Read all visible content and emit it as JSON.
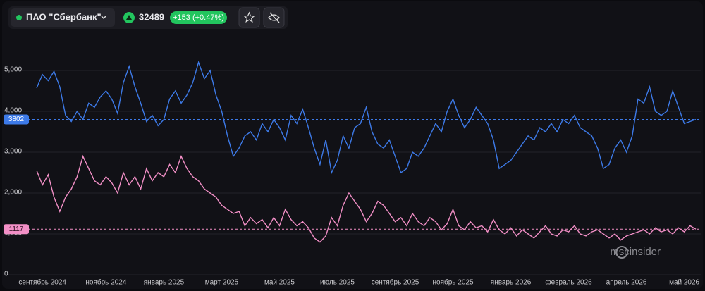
{
  "header": {
    "name": "ПАО \"Сбербанк\"",
    "price": 32489,
    "change": "+153 (+0.47%)"
  },
  "watermark": "mscinsider",
  "chart_data": {
    "type": "line",
    "categories": [
      null,
      "сентябрь 2024",
      null,
      null,
      null,
      null,
      null,
      null,
      null,
      null,
      null,
      null,
      "ноябрь 2024",
      null,
      null,
      null,
      null,
      null,
      null,
      null,
      null,
      null,
      "январь 2025",
      null,
      null,
      null,
      null,
      null,
      null,
      null,
      null,
      null,
      "март 2025",
      null,
      null,
      null,
      null,
      null,
      null,
      null,
      null,
      null,
      "май 2025",
      null,
      null,
      null,
      null,
      null,
      null,
      null,
      null,
      null,
      "июль 2025",
      null,
      null,
      null,
      null,
      null,
      null,
      null,
      null,
      null,
      "сентябрь 2025",
      null,
      null,
      null,
      null,
      null,
      null,
      null,
      null,
      null,
      "ноябрь 2025",
      null,
      null,
      null,
      null,
      null,
      null,
      null,
      null,
      null,
      "январь 2026",
      null,
      null,
      null,
      null,
      null,
      null,
      null,
      null,
      null,
      "февраль 2026",
      null,
      null,
      null,
      null,
      null,
      null,
      null,
      null,
      null,
      "апрель 2026",
      null,
      null,
      null,
      null,
      null,
      null,
      null,
      null,
      null,
      "май 2026",
      null,
      null
    ],
    "series": [
      {
        "color": "#3d7ae8",
        "values": [
          4570,
          4900,
          4750,
          4980,
          4600,
          3900,
          3750,
          4000,
          3800,
          4200,
          4100,
          4350,
          4500,
          4300,
          3950,
          4700,
          5100,
          4600,
          4200,
          3750,
          3900,
          3650,
          3800,
          4300,
          4500,
          4200,
          4400,
          4700,
          5200,
          4800,
          5000,
          4400,
          4000,
          3400,
          2900,
          3100,
          3400,
          3500,
          3300,
          3700,
          3500,
          3800,
          3600,
          3300,
          3900,
          3700,
          4050,
          3600,
          3100,
          2700,
          3300,
          2500,
          2800,
          3400,
          3100,
          3600,
          3700,
          4100,
          3500,
          3200,
          3100,
          3300,
          2900,
          2500,
          2600,
          3000,
          2900,
          3100,
          3400,
          3700,
          3500,
          4000,
          4300,
          3900,
          3600,
          3800,
          4100,
          3900,
          3700,
          3300,
          2600,
          2700,
          2800,
          3000,
          3200,
          3400,
          3300,
          3600,
          3500,
          3700,
          3500,
          3800,
          3700,
          3900,
          3600,
          3500,
          3400,
          3100,
          2600,
          2700,
          3100,
          3300,
          3000,
          3400,
          4300,
          4200,
          4600,
          4000,
          3900,
          4000,
          4500,
          4100,
          3700,
          3750,
          3802
        ]
      },
      {
        "color": "#f28fc6",
        "values": [
          2550,
          2200,
          2450,
          1900,
          1550,
          1900,
          2100,
          2400,
          2900,
          2600,
          2300,
          2200,
          2400,
          2250,
          2000,
          2500,
          2200,
          2400,
          2100,
          2600,
          2300,
          2500,
          2400,
          2700,
          2500,
          2900,
          2600,
          2400,
          2300,
          2100,
          2000,
          1900,
          1700,
          1600,
          1500,
          1550,
          1200,
          1400,
          1250,
          1350,
          1150,
          1400,
          1200,
          1600,
          1350,
          1200,
          1300,
          1150,
          900,
          800,
          950,
          1400,
          1200,
          1700,
          2000,
          1800,
          1600,
          1300,
          1500,
          1800,
          1700,
          1500,
          1300,
          1400,
          1200,
          1500,
          1300,
          1200,
          1400,
          1300,
          1100,
          1250,
          1600,
          1200,
          1100,
          1300,
          1150,
          1200,
          1050,
          1350,
          1100,
          1000,
          1150,
          950,
          1100,
          1000,
          900,
          1050,
          1200,
          1000,
          950,
          1100,
          1050,
          1200,
          1000,
          950,
          1050,
          1100,
          1000,
          900,
          1000,
          850,
          950,
          1000,
          1050,
          1100,
          1000,
          1150,
          1050,
          1100,
          1000,
          1150,
          1050,
          1200,
          1117
        ]
      }
    ],
    "ylim": [
      0,
      6000
    ],
    "yticks": [
      0,
      {
        "value": 1000,
        "label": "1,000"
      },
      {
        "value": 2000,
        "label": "2,000"
      },
      {
        "value": 3000,
        "label": "3,000"
      },
      {
        "value": 4000,
        "label": "4,000"
      },
      {
        "value": 5000,
        "label": "5,000"
      }
    ],
    "grid": true
  }
}
